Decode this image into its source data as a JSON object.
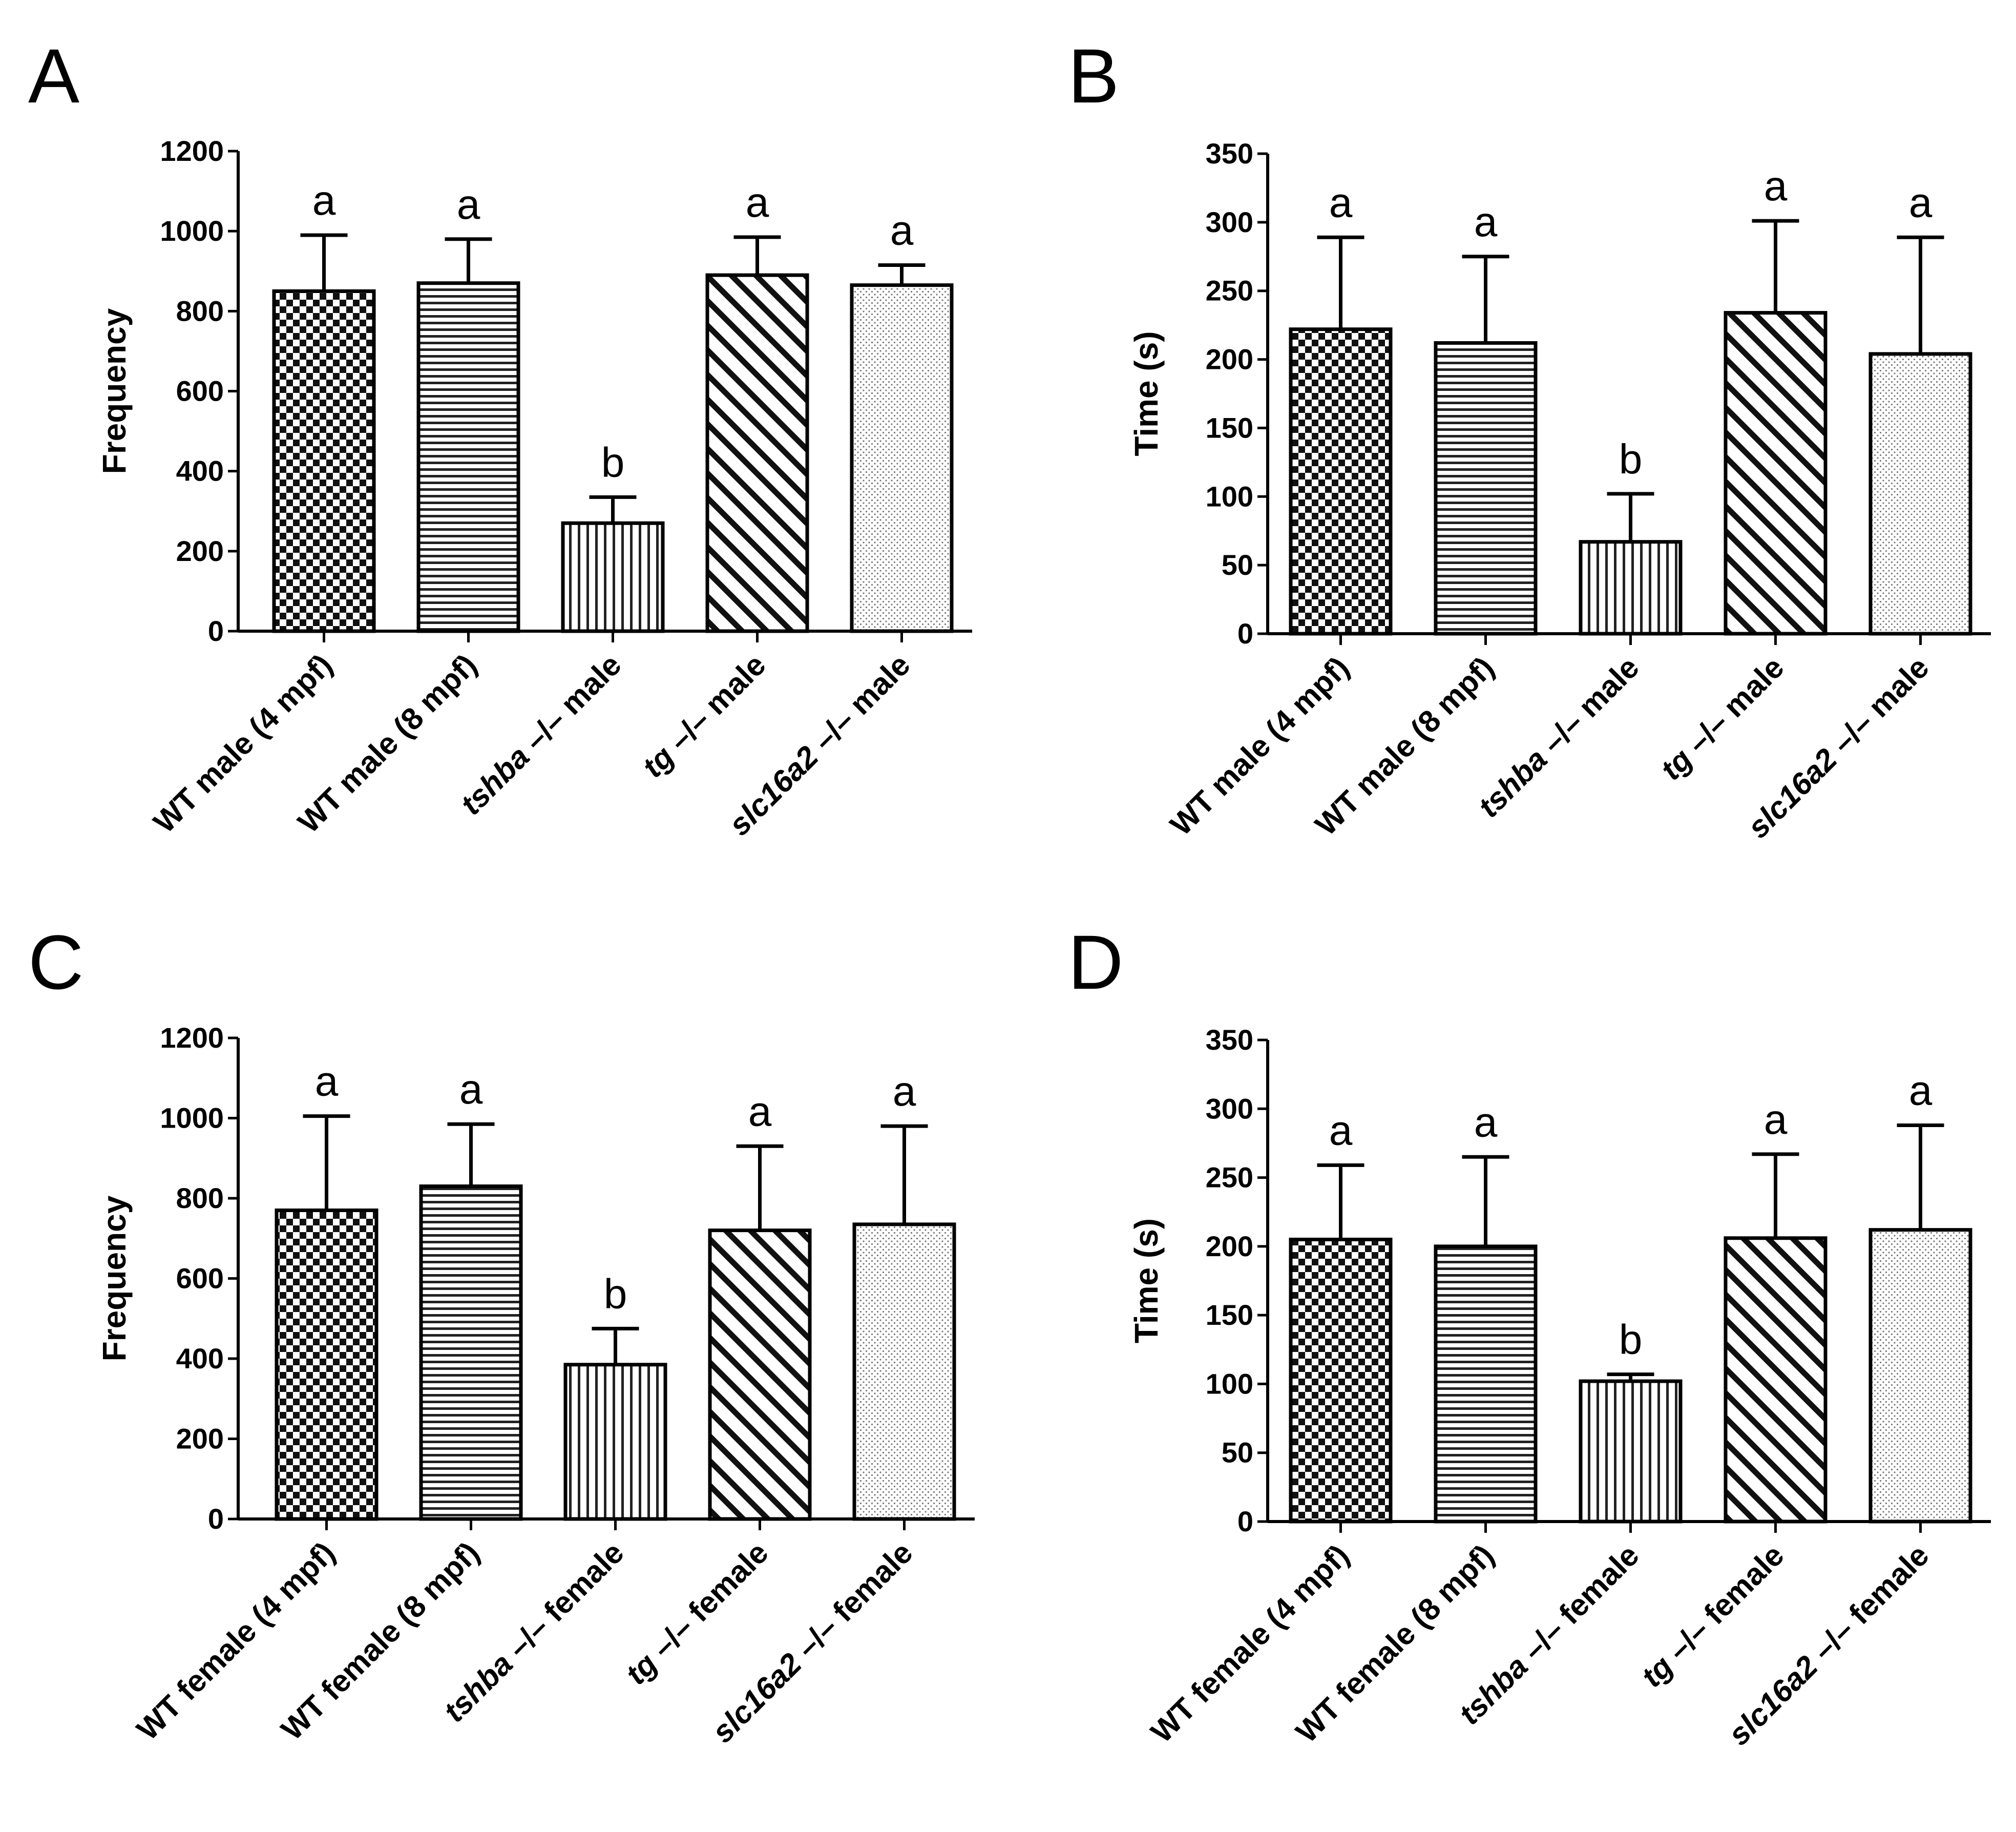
{
  "chart_data": [
    {
      "panel": "A",
      "type": "bar",
      "ylabel": "Frequency",
      "ylim": [
        0,
        1200
      ],
      "yticks": [
        0,
        200,
        400,
        600,
        800,
        1000,
        1200
      ],
      "categories": [
        {
          "pre": "WT male (4 mpf)",
          "it": "",
          "post": ""
        },
        {
          "pre": "WT male (8 mpf)",
          "it": "",
          "post": ""
        },
        {
          "pre": "",
          "it": "tshba",
          "post": " –/– male"
        },
        {
          "pre": "",
          "it": "tg",
          "post": " –/– male"
        },
        {
          "pre": "",
          "it": "slc16a2",
          "post": " –/– male"
        }
      ],
      "values": [
        850,
        870,
        270,
        890,
        865
      ],
      "errors": [
        140,
        110,
        65,
        95,
        50
      ],
      "significance": [
        "a",
        "a",
        "b",
        "a",
        "a"
      ]
    },
    {
      "panel": "B",
      "type": "bar",
      "ylabel": "Time (s)",
      "ylim": [
        0,
        350
      ],
      "yticks": [
        0,
        50,
        100,
        150,
        200,
        250,
        300,
        350
      ],
      "categories": [
        {
          "pre": "WT male (4 mpf)",
          "it": "",
          "post": ""
        },
        {
          "pre": "WT male (8 mpf)",
          "it": "",
          "post": ""
        },
        {
          "pre": "",
          "it": "tshba",
          "post": " –/– male"
        },
        {
          "pre": "",
          "it": "tg",
          "post": " –/– male"
        },
        {
          "pre": "",
          "it": "slc16a2",
          "post": " –/– male"
        }
      ],
      "values": [
        222,
        212,
        67,
        234,
        204
      ],
      "errors": [
        67,
        63,
        35,
        67,
        85
      ],
      "significance": [
        "a",
        "a",
        "b",
        "a",
        "a"
      ]
    },
    {
      "panel": "C",
      "type": "bar",
      "ylabel": "Frequency",
      "ylim": [
        0,
        1200
      ],
      "yticks": [
        0,
        200,
        400,
        600,
        800,
        1000,
        1200
      ],
      "categories": [
        {
          "pre": "WT female (4 mpf)",
          "it": "",
          "post": ""
        },
        {
          "pre": "WT female (8 mpf)",
          "it": "",
          "post": ""
        },
        {
          "pre": "",
          "it": "tshba",
          "post": " –/– female"
        },
        {
          "pre": "",
          "it": "tg",
          "post": " –/– female"
        },
        {
          "pre": "",
          "it": "slc16a2",
          "post": " –/– female"
        }
      ],
      "values": [
        770,
        830,
        385,
        720,
        735
      ],
      "errors": [
        235,
        155,
        90,
        210,
        245
      ],
      "significance": [
        "a",
        "a",
        "b",
        "a",
        "a"
      ]
    },
    {
      "panel": "D",
      "type": "bar",
      "ylabel": "Time (s)",
      "ylim": [
        0,
        350
      ],
      "yticks": [
        0,
        50,
        100,
        150,
        200,
        250,
        300,
        350
      ],
      "categories": [
        {
          "pre": "WT female (4 mpf)",
          "it": "",
          "post": ""
        },
        {
          "pre": "WT female (8 mpf)",
          "it": "",
          "post": ""
        },
        {
          "pre": "",
          "it": "tshba",
          "post": " –/– female"
        },
        {
          "pre": "",
          "it": "tg",
          "post": " –/– female"
        },
        {
          "pre": "",
          "it": "slc16a2",
          "post": " –/– female"
        }
      ],
      "values": [
        205,
        200,
        102,
        206,
        212
      ],
      "errors": [
        54,
        65,
        5,
        61,
        76
      ],
      "significance": [
        "a",
        "a",
        "b",
        "a",
        "a"
      ]
    }
  ]
}
